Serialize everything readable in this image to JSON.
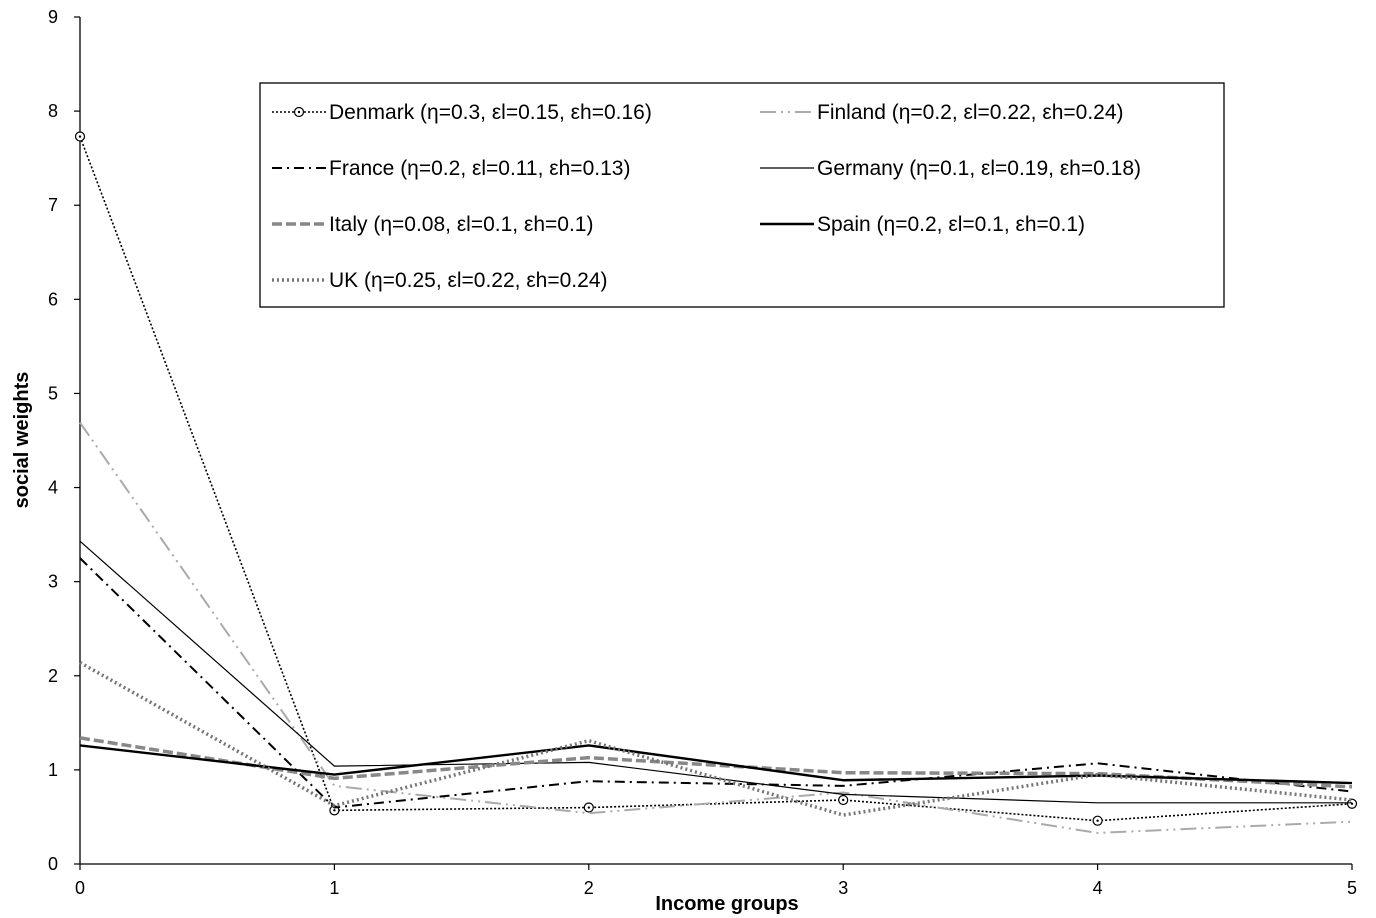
{
  "chart_data": {
    "type": "line",
    "title": "",
    "xlabel": "Income groups",
    "ylabel": "social weights",
    "x": [
      0,
      1,
      2,
      3,
      4,
      5
    ],
    "xlim": [
      0,
      5
    ],
    "ylim": [
      0,
      9
    ],
    "yticks": [
      "0",
      "1",
      "2",
      "3",
      "4",
      "5",
      "6",
      "7",
      "8",
      "9"
    ],
    "xticks": [
      "0",
      "1",
      "2",
      "3",
      "4",
      "5"
    ],
    "grid": false,
    "legend_position": "top-center",
    "series": [
      {
        "name": "Denmark (η=0.3, εl=0.15, εh=0.16)",
        "values": [
          7.73,
          0.57,
          0.6,
          0.68,
          0.46,
          0.64
        ],
        "color": "#000000",
        "style": "dotted-marker"
      },
      {
        "name": "Finland (η=0.2, εl=0.22, εh=0.24)",
        "values": [
          4.69,
          0.83,
          0.54,
          0.76,
          0.33,
          0.45
        ],
        "color": "#aaaaaa",
        "style": "dash-dot-dot"
      },
      {
        "name": "France (η=0.2, εl=0.11, εh=0.13)",
        "values": [
          3.25,
          0.6,
          0.88,
          0.83,
          1.07,
          0.77
        ],
        "color": "#000000",
        "style": "dash-dot"
      },
      {
        "name": "Germany (η=0.1, εl=0.19, εh=0.18)",
        "values": [
          3.43,
          1.04,
          1.08,
          0.74,
          0.65,
          0.65
        ],
        "color": "#000000",
        "style": "thin"
      },
      {
        "name": "Italy (η=0.08, εl=0.1, εh=0.1)",
        "values": [
          1.34,
          0.91,
          1.13,
          0.97,
          0.96,
          0.82
        ],
        "color": "#888888",
        "style": "dashed"
      },
      {
        "name": "Spain (η=0.2, εl=0.1, εh=0.1)",
        "values": [
          1.26,
          0.95,
          1.26,
          0.89,
          0.94,
          0.86
        ],
        "color": "#000000",
        "style": "thick"
      },
      {
        "name": "UK (η=0.25, εl=0.22, εh=0.24)",
        "values": [
          2.14,
          0.62,
          1.31,
          0.52,
          0.95,
          0.68
        ],
        "color": "#777777",
        "style": "dotted"
      }
    ]
  }
}
